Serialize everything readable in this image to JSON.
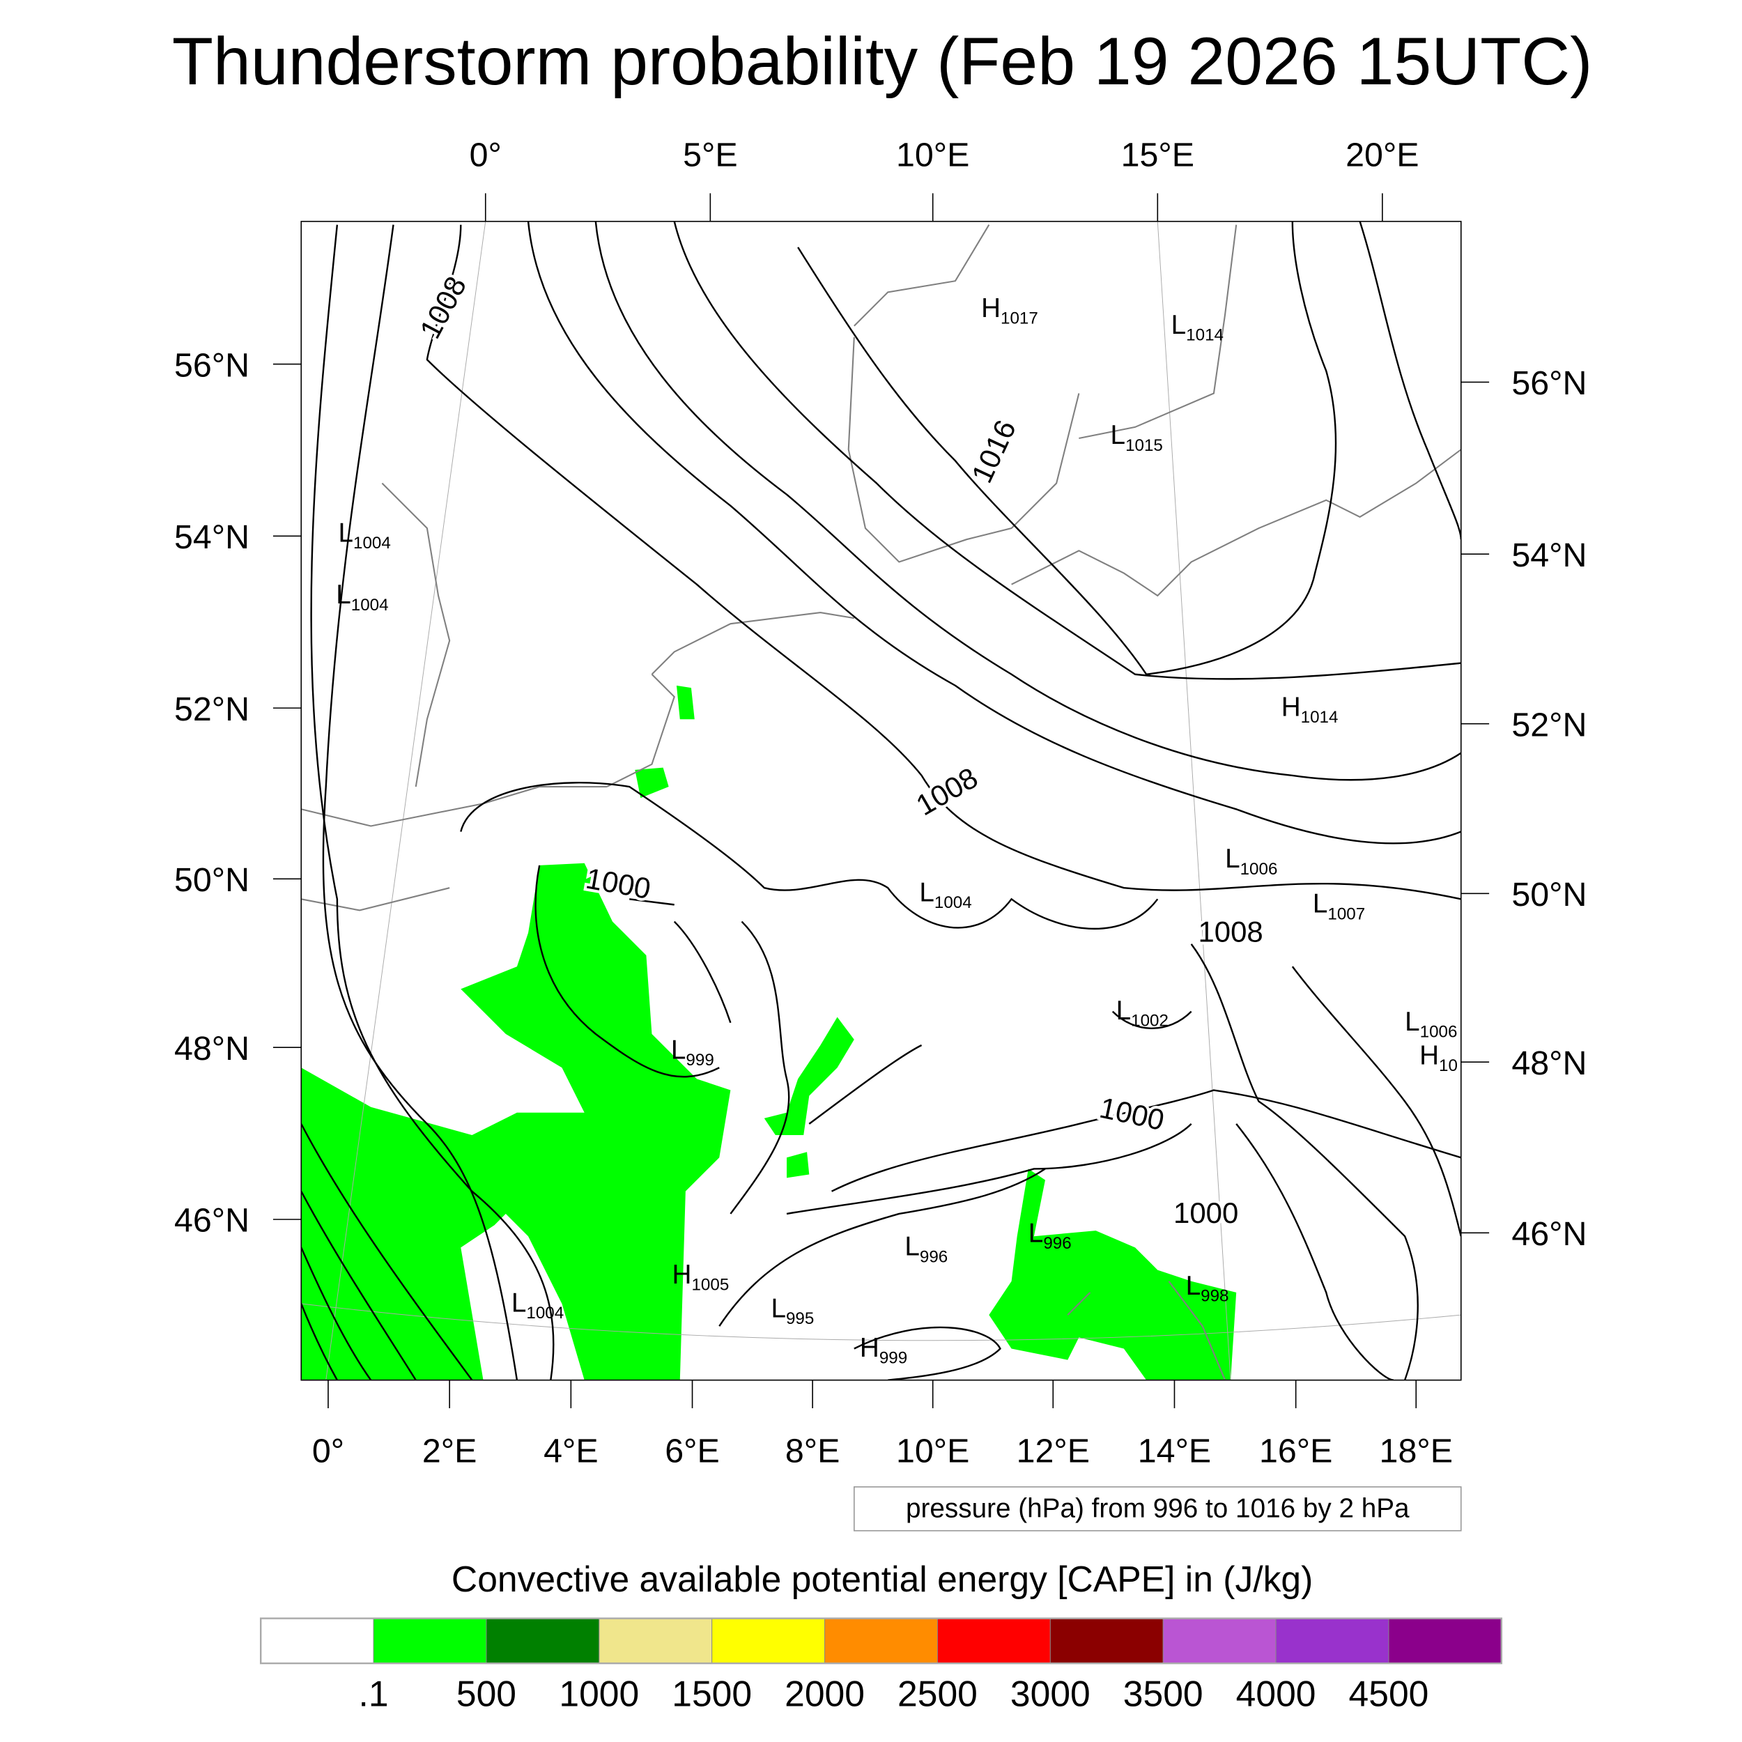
{
  "chart_data": {
    "type": "heatmap",
    "title": "Thunderstorm probability (Feb 19 2026 15UTC)",
    "lon_labels_top": [
      "0°",
      "5°E",
      "10°E",
      "15°E",
      "20°E"
    ],
    "lon_labels_bottom": [
      "0°",
      "2°E",
      "4°E",
      "6°E",
      "8°E",
      "10°E",
      "12°E",
      "14°E",
      "16°E",
      "18°E"
    ],
    "lat_labels_left": [
      "56°N",
      "54°N",
      "52°N",
      "50°N",
      "48°N",
      "46°N"
    ],
    "lat_labels_right": [
      "56°N",
      "54°N",
      "52°N",
      "50°N",
      "48°N",
      "46°N"
    ],
    "contour_note": "pressure (hPa) from 996 to 1016 by 2 hPa",
    "colorbar": {
      "title": "Convective available potential energy [CAPE] in (J/kg)",
      "colors": [
        "#ffffff",
        "#00ff00",
        "#008000",
        "#f0e68c",
        "#ffff00",
        "#ff8c00",
        "#ff0000",
        "#8b0000",
        "#ba55d3",
        "#9932cc",
        "#8b008b"
      ],
      "labels": [
        ".1",
        "500",
        "1000",
        "1500",
        "2000",
        "2500",
        "3000",
        "3500",
        "4000",
        "4500"
      ]
    },
    "pressure_centers": [
      {
        "type": "H",
        "value": "1017"
      },
      {
        "type": "L",
        "value": "1014"
      },
      {
        "type": "L",
        "value": "1015"
      },
      {
        "type": "L",
        "value": "1004"
      },
      {
        "type": "L",
        "value": "1004"
      },
      {
        "type": "H",
        "value": "1014"
      },
      {
        "type": "L",
        "value": "1006"
      },
      {
        "type": "L",
        "value": "1007"
      },
      {
        "type": "L",
        "value": "1004"
      },
      {
        "type": "L",
        "value": "1002"
      },
      {
        "type": "L",
        "value": "1006"
      },
      {
        "type": "H",
        "value": "10"
      },
      {
        "type": "L",
        "value": "999"
      },
      {
        "type": "L",
        "value": "996"
      },
      {
        "type": "L",
        "value": "996"
      },
      {
        "type": "L",
        "value": "998"
      },
      {
        "type": "H",
        "value": "1005"
      },
      {
        "type": "L",
        "value": "1004"
      },
      {
        "type": "L",
        "value": "995"
      },
      {
        "type": "H",
        "value": "999"
      }
    ],
    "contour_labels": [
      "1008",
      "1016",
      "1008",
      "1000",
      "1008",
      "1000",
      "1000"
    ],
    "cape_field_color": "#00ff00"
  }
}
